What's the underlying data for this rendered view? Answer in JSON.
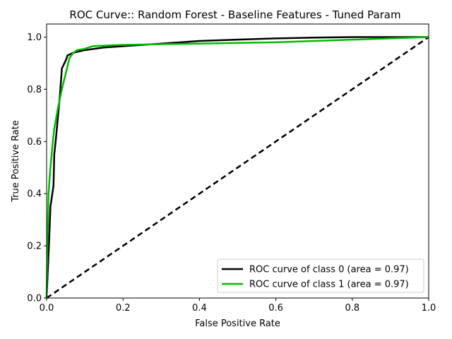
{
  "chart_data": {
    "type": "line",
    "title": "ROC Curve:: Random Forest - Baseline Features - Tuned Param",
    "xlabel": "False Positive Rate",
    "ylabel": "True Positive Rate",
    "xlim": [
      0.0,
      1.0
    ],
    "ylim": [
      0.0,
      1.05
    ],
    "x_ticks": [
      "0.0",
      "0.2",
      "0.4",
      "0.6",
      "0.8",
      "1.0"
    ],
    "y_ticks": [
      "0.0",
      "0.2",
      "0.4",
      "0.6",
      "0.8",
      "1.0"
    ],
    "grid": false,
    "legend_position": "lower-right",
    "series": [
      {
        "name": "ROC curve of class 0 (area = 0.97)",
        "color": "#000000",
        "style": "solid",
        "points": [
          [
            0.0,
            0.0
          ],
          [
            0.003,
            0.1
          ],
          [
            0.006,
            0.2
          ],
          [
            0.01,
            0.35
          ],
          [
            0.018,
            0.43
          ],
          [
            0.02,
            0.55
          ],
          [
            0.025,
            0.62
          ],
          [
            0.03,
            0.7
          ],
          [
            0.035,
            0.78
          ],
          [
            0.04,
            0.88
          ],
          [
            0.05,
            0.91
          ],
          [
            0.055,
            0.93
          ],
          [
            0.07,
            0.94
          ],
          [
            0.1,
            0.95
          ],
          [
            0.15,
            0.96
          ],
          [
            0.2,
            0.965
          ],
          [
            0.3,
            0.975
          ],
          [
            0.4,
            0.985
          ],
          [
            0.5,
            0.99
          ],
          [
            0.6,
            0.995
          ],
          [
            0.7,
            0.998
          ],
          [
            0.8,
            1.0
          ],
          [
            0.9,
            1.0
          ],
          [
            1.0,
            1.0
          ]
        ]
      },
      {
        "name": "ROC curve of class 1 (area = 0.97)",
        "color": "#00bb00",
        "style": "solid",
        "points": [
          [
            0.0,
            0.0
          ],
          [
            0.002,
            0.2
          ],
          [
            0.005,
            0.4
          ],
          [
            0.01,
            0.5
          ],
          [
            0.015,
            0.58
          ],
          [
            0.02,
            0.65
          ],
          [
            0.03,
            0.73
          ],
          [
            0.04,
            0.8
          ],
          [
            0.05,
            0.86
          ],
          [
            0.06,
            0.92
          ],
          [
            0.07,
            0.94
          ],
          [
            0.08,
            0.95
          ],
          [
            0.1,
            0.955
          ],
          [
            0.12,
            0.965
          ],
          [
            0.2,
            0.97
          ],
          [
            0.3,
            0.973
          ],
          [
            0.4,
            0.975
          ],
          [
            0.6,
            0.98
          ],
          [
            0.8,
            0.99
          ],
          [
            1.0,
            1.0
          ]
        ]
      },
      {
        "name": "chance",
        "color": "#000000",
        "style": "dashed",
        "points": [
          [
            0.0,
            0.0
          ],
          [
            1.0,
            1.0
          ]
        ]
      }
    ]
  }
}
